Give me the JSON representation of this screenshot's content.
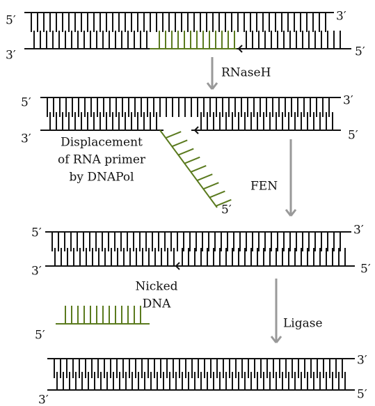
{
  "panels": [
    {
      "top_left": "5′",
      "top_right": "3′",
      "bottom_left": "3′",
      "bottom_right": "5′"
    },
    {
      "top_left": "5′",
      "top_right": "3′",
      "bottom_left": "3′",
      "bottom_right": "5′",
      "flap_end": "5′"
    },
    {
      "top_left": "5′",
      "top_right": "3′",
      "bottom_left": "3′",
      "bottom_right": "5′"
    },
    {
      "top_right": "3′",
      "bottom_left": "3′",
      "bottom_right": "5′"
    }
  ],
  "steps": [
    "RNaseH",
    "FEN",
    "Ligase"
  ],
  "annotations": {
    "displacement": [
      "Displacement",
      "of RNA primer",
      "by DNAPol"
    ],
    "nicked": [
      "Nicked",
      "DNA"
    ]
  },
  "released_primer": {
    "end": "5′"
  }
}
